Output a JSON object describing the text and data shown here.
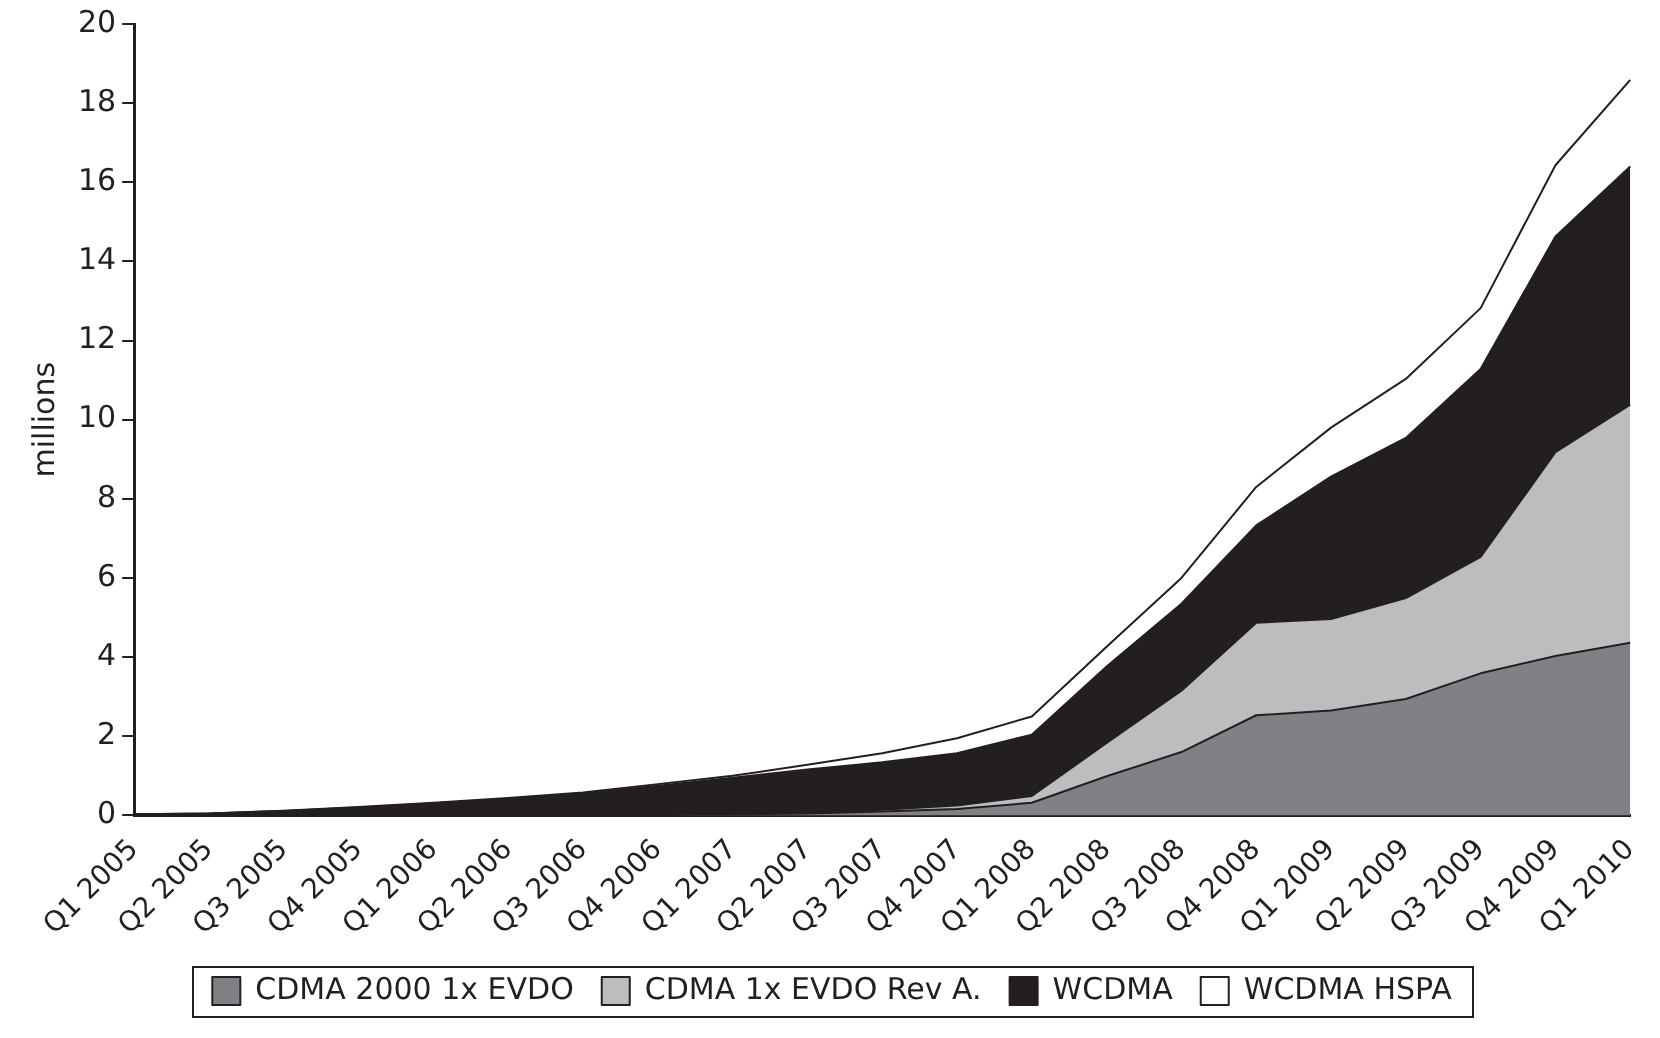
{
  "chart_data": {
    "type": "area",
    "stacked": true,
    "ylabel": "millions",
    "categories": [
      "Q1 2005",
      "Q2 2005",
      "Q3 2005",
      "Q4 2005",
      "Q1 2006",
      "Q2 2006",
      "Q3 2006",
      "Q4 2006",
      "Q1 2007",
      "Q2 2007",
      "Q3 2007",
      "Q4 2007",
      "Q1 2008",
      "Q2 2008",
      "Q3 2008",
      "Q4 2008",
      "Q1 2009",
      "Q2 2009",
      "Q3 2009",
      "Q4 2009",
      "Q1 2010"
    ],
    "series": [
      {
        "name": "CDMA 2000 1x EVDO",
        "color": "#808184",
        "values": [
          0,
          0,
          0,
          0,
          0,
          0,
          0,
          0,
          0.02,
          0.05,
          0.1,
          0.16,
          0.32,
          0.99,
          1.6,
          2.53,
          2.65,
          2.94,
          3.59,
          4.03,
          4.36
        ]
      },
      {
        "name": "CDMA 1x EVDO Rev A.",
        "color": "#bcbdbf",
        "values": [
          0,
          0,
          0,
          0,
          0,
          0,
          0,
          0,
          0,
          0,
          0.04,
          0.09,
          0.17,
          0.84,
          1.55,
          2.34,
          2.31,
          2.55,
          2.94,
          5.15,
          6.02
        ]
      },
      {
        "name": "WCDMA",
        "color": "#231f20",
        "values": [
          0.03,
          0.05,
          0.11,
          0.2,
          0.3,
          0.42,
          0.55,
          0.75,
          0.93,
          1.11,
          1.2,
          1.32,
          1.55,
          1.93,
          2.2,
          2.46,
          3.6,
          4.05,
          4.75,
          5.45,
          6.02
        ]
      },
      {
        "name": "WCDMA HSPA",
        "color": "#ffffff",
        "values": [
          0,
          0,
          0.01,
          0.01,
          0.02,
          0.02,
          0.03,
          0.04,
          0.05,
          0.12,
          0.23,
          0.38,
          0.46,
          0.5,
          0.65,
          0.97,
          1.24,
          1.49,
          1.54,
          1.8,
          2.19
        ]
      }
    ],
    "ylim": [
      0,
      20
    ],
    "yticks": [
      0,
      2,
      4,
      6,
      8,
      10,
      12,
      14,
      16,
      18,
      20
    ],
    "grid": false,
    "legend": "bottom"
  }
}
